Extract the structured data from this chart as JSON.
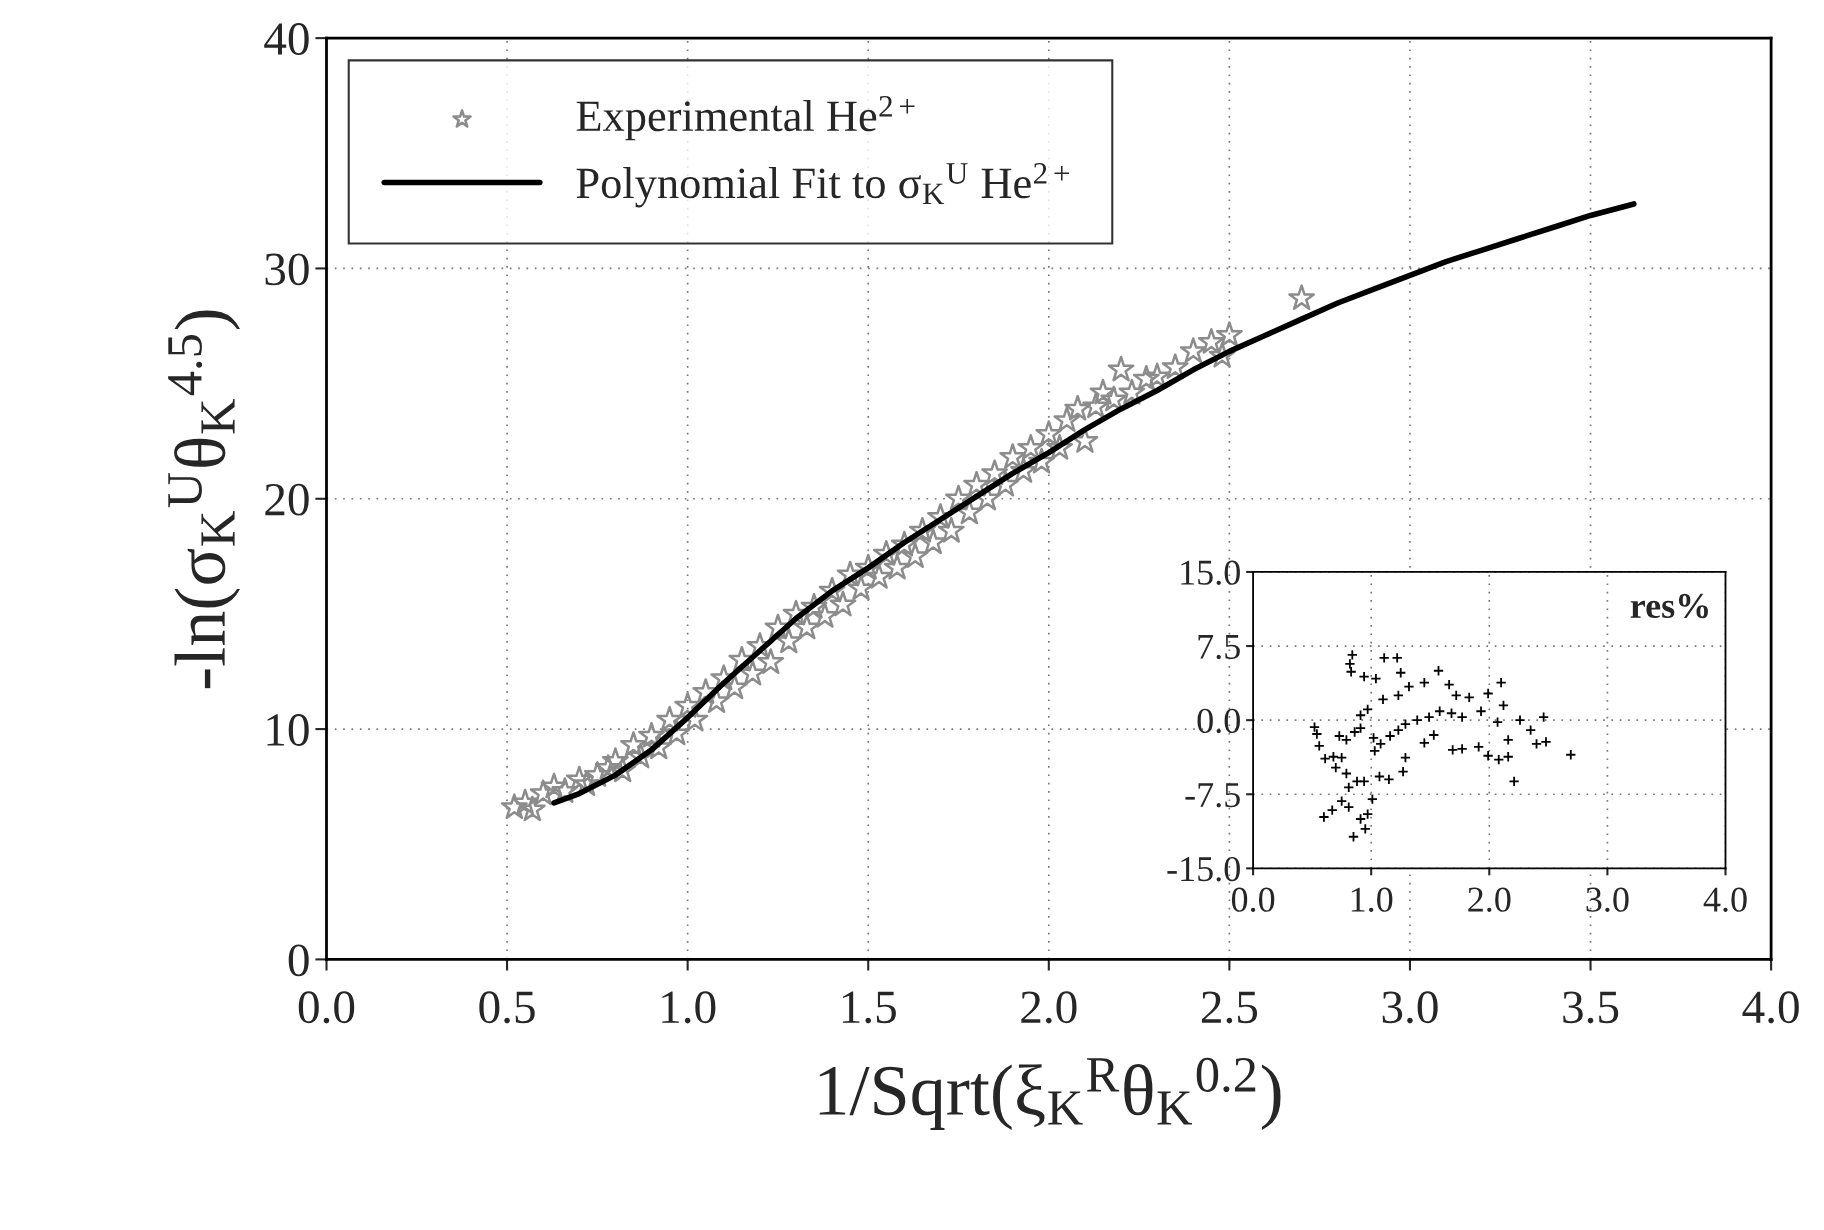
{
  "chart_data": [
    {
      "type": "scatter",
      "xlabel": "1/Sqrt(ξ$_{K}$$^{R}$θ$_{K}$$^{0.2}$)",
      "ylabel": "-ln(σ$_{K}$$^{U}$θ$_{K}$$^{4.5}$)",
      "xlim": [
        0,
        4
      ],
      "ylim": [
        0,
        40
      ],
      "xticks": [
        {
          "value": 0,
          "label": "0.0"
        },
        {
          "value": 0.5,
          "label": "0.5"
        },
        {
          "value": 1,
          "label": "1.0"
        },
        {
          "value": 1.5,
          "label": "1.5"
        },
        {
          "value": 2,
          "label": "2.0"
        },
        {
          "value": 2.5,
          "label": "2.5"
        },
        {
          "value": 3,
          "label": "3.0"
        },
        {
          "value": 3.5,
          "label": "3.5"
        },
        {
          "value": 4,
          "label": "4.0"
        }
      ],
      "yticks": [
        0,
        10,
        20,
        30,
        40
      ],
      "grid": true,
      "legend": "top left",
      "series": [
        {
          "name": "Experimental He$^{2+}$",
          "type": "scatter",
          "marker": "star",
          "color": "#8c8c8c",
          "x": [
            0.52,
            0.55,
            0.57,
            0.6,
            0.63,
            0.66,
            0.7,
            0.72,
            0.75,
            0.78,
            0.8,
            0.82,
            0.85,
            0.87,
            0.9,
            0.92,
            0.95,
            0.97,
            1.0,
            1.02,
            1.05,
            1.08,
            1.1,
            1.13,
            1.15,
            1.18,
            1.2,
            1.23,
            1.25,
            1.28,
            1.3,
            1.33,
            1.35,
            1.38,
            1.4,
            1.43,
            1.45,
            1.48,
            1.5,
            1.53,
            1.55,
            1.58,
            1.6,
            1.63,
            1.65,
            1.68,
            1.7,
            1.73,
            1.75,
            1.78,
            1.8,
            1.83,
            1.85,
            1.88,
            1.9,
            1.93,
            1.95,
            1.98,
            2.0,
            2.03,
            2.05,
            2.08,
            2.1,
            2.13,
            2.15,
            2.18,
            2.2,
            2.23,
            2.27,
            2.3,
            2.35,
            2.4,
            2.45,
            2.48,
            2.5,
            2.7
          ],
          "values": [
            6.6,
            6.8,
            6.5,
            7.2,
            7.5,
            7.3,
            7.8,
            7.6,
            8.0,
            8.3,
            8.6,
            8.2,
            9.3,
            8.8,
            9.7,
            9.2,
            10.4,
            9.8,
            11.0,
            10.4,
            11.6,
            11.2,
            12.2,
            11.8,
            13.0,
            12.4,
            13.6,
            12.9,
            14.4,
            13.8,
            15.0,
            14.4,
            15.3,
            14.9,
            16.0,
            15.4,
            16.7,
            16.1,
            17.0,
            16.6,
            17.6,
            17.0,
            18.0,
            17.5,
            18.6,
            18.1,
            19.2,
            18.6,
            20.0,
            19.4,
            20.6,
            20.0,
            21.1,
            20.6,
            21.8,
            21.2,
            22.2,
            21.6,
            22.8,
            22.2,
            23.4,
            23.9,
            22.5,
            24.0,
            24.6,
            24.3,
            25.6,
            24.6,
            25.2,
            25.3,
            25.7,
            26.4,
            26.8,
            26.2,
            27.1,
            28.7
          ]
        },
        {
          "name": "Polynomial Fit to σ$_{K}$$^{U}$ He$^{2+}$",
          "type": "line",
          "marker": "none",
          "line_style": "solid",
          "color": "#000000",
          "x": [
            0.63,
            0.7,
            0.8,
            0.9,
            1.0,
            1.1,
            1.2,
            1.3,
            1.4,
            1.5,
            1.6,
            1.7,
            1.8,
            1.9,
            2.0,
            2.1,
            2.2,
            2.3,
            2.4,
            2.5,
            2.6,
            2.7,
            2.8,
            2.9,
            3.0,
            3.1,
            3.2,
            3.3,
            3.4,
            3.5,
            3.62
          ],
          "values": [
            6.8,
            7.2,
            8.0,
            9.1,
            10.5,
            12.0,
            13.4,
            14.8,
            16.0,
            17.0,
            18.1,
            19.1,
            20.1,
            21.1,
            22.0,
            23.0,
            23.9,
            24.7,
            25.6,
            26.4,
            27.1,
            27.8,
            28.5,
            29.1,
            29.7,
            30.3,
            30.8,
            31.3,
            31.8,
            32.3,
            32.8
          ]
        }
      ]
    },
    {
      "type": "scatter",
      "annotations": [
        "res%"
      ],
      "xlim": [
        0,
        4
      ],
      "ylim": [
        -15,
        15
      ],
      "xticks": [
        {
          "value": 0,
          "label": "0.0"
        },
        {
          "value": 1,
          "label": "1.0"
        },
        {
          "value": 2,
          "label": "2.0"
        },
        {
          "value": 3,
          "label": "3.0"
        },
        {
          "value": 4,
          "label": "4.0"
        }
      ],
      "yticks": [
        {
          "value": 15,
          "label": "15.0"
        },
        {
          "value": 7.5,
          "label": "7.5"
        },
        {
          "value": 0,
          "label": "0.0"
        },
        {
          "value": -7.5,
          "label": "-7.5"
        },
        {
          "value": -15,
          "label": "-15.0"
        }
      ],
      "grid": true,
      "marker": "cross",
      "series": [
        {
          "color": "#000000",
          "x": [
            0.52,
            0.54,
            0.56,
            0.61,
            0.68,
            0.75,
            0.7,
            0.6,
            0.67,
            0.75,
            0.81,
            0.85,
            0.95,
            0.91,
            0.97,
            1.01,
            0.94,
            0.88,
            0.79,
            0.81,
            0.73,
            0.79,
            0.86,
            0.91,
            0.84,
            0.82,
            0.83,
            0.94,
            1.04,
            1.11,
            1.22,
            1.25,
            1.32,
            1.45,
            1.57,
            1.66,
            1.23,
            1.1,
            0.97,
            0.91,
            1.02,
            1.03,
            1.08,
            1.16,
            1.23,
            1.29,
            1.39,
            1.49,
            1.58,
            1.68,
            1.77,
            1.72,
            1.83,
            1.93,
            1.99,
            2.1,
            2.12,
            2.07,
            2.16,
            2.26,
            2.35,
            2.46,
            2.48,
            2.4,
            2.69,
            2.21,
            2.16,
            2.08,
            1.99,
            1.91,
            1.77,
            1.69,
            1.27,
            1.29,
            1.07,
            1.15,
            1.53,
            1.45
          ],
          "values": [
            -0.7,
            -1.4,
            -2.6,
            -3.9,
            -3.7,
            -3.8,
            -4.8,
            -9.8,
            -9.1,
            -8.2,
            -8.8,
            -11.8,
            -11.0,
            -10.0,
            -9.5,
            -8.0,
            -6.2,
            -6.2,
            -5.4,
            -6.8,
            -1.6,
            -2.0,
            -1.2,
            -0.8,
            6.6,
            5.7,
            4.9,
            4.4,
            4.2,
            6.3,
            6.3,
            4.8,
            3.4,
            3.8,
            5.0,
            3.6,
            2.5,
            2.1,
            1.1,
            0.5,
            -1.8,
            -3.1,
            -2.4,
            -1.6,
            -1.0,
            -0.4,
            0.0,
            0.3,
            0.9,
            0.7,
            0.3,
            2.5,
            2.3,
            0.9,
            2.7,
            3.8,
            1.5,
            -0.2,
            -2.0,
            0.0,
            -1.0,
            0.3,
            -2.2,
            -2.4,
            -3.5,
            -6.2,
            -3.7,
            -4.0,
            -3.6,
            -2.7,
            -2.9,
            -3.0,
            -5.2,
            -3.8,
            -5.7,
            -6.0,
            -1.5,
            -2.3
          ]
        }
      ]
    }
  ]
}
